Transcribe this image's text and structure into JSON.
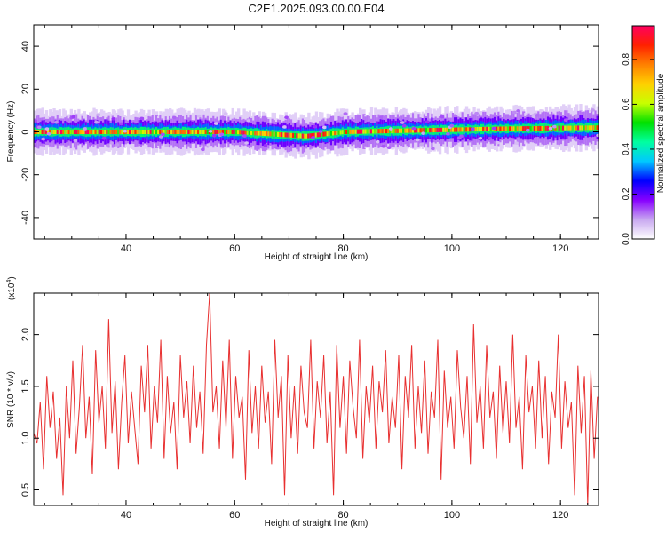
{
  "title": "C2E1.2025.093.00.00.E04",
  "chart_data": [
    {
      "type": "heatmap",
      "xlabel": "Height of straight line (km)",
      "ylabel": "Frequency (Hz)",
      "xlim": [
        23,
        127
      ],
      "ylim": [
        -50,
        50
      ],
      "x_ticks": [
        40,
        60,
        80,
        100,
        120
      ],
      "y_ticks": [
        -40,
        -20,
        0,
        20,
        40
      ],
      "y_tick_labels": [
        "-40",
        "-20",
        "0",
        "20",
        "40"
      ],
      "band": {
        "center_x": [
          23,
          40,
          60,
          73,
          80,
          100,
          110,
          127
        ],
        "center_y": [
          0,
          0,
          0,
          -2,
          0,
          1,
          1.5,
          2
        ],
        "half_width_hz": 3.5
      },
      "colorbar": {
        "label": "Normalized spectral amplitude",
        "range": [
          0,
          0.95
        ],
        "ticks": [
          0.0,
          0.2,
          0.4,
          0.6,
          0.8
        ],
        "tick_labels": [
          "0.0",
          "0.2",
          "0.4",
          "0.6",
          "0.8"
        ],
        "colormap": [
          "#ffffff",
          "#c8a8f0",
          "#8800ff",
          "#0000ff",
          "#00c8ff",
          "#00ffa0",
          "#00e000",
          "#c8ff00",
          "#ffd000",
          "#ff8000",
          "#ff2000",
          "#ff0060"
        ]
      },
      "grid": false
    },
    {
      "type": "line",
      "xlabel": "Height of straight line (km)",
      "ylabel": "SNR (10 * v/v)",
      "scale_label": "(x10",
      "scale_exponent": "4",
      "scale_close": ")",
      "xlim": [
        23,
        127
      ],
      "ylim": [
        0.35,
        2.4
      ],
      "x_ticks": [
        40,
        60,
        80,
        100,
        120
      ],
      "y_ticks": [
        0.5,
        1.0,
        1.5,
        2.0
      ],
      "y_tick_labels": [
        "0.5",
        "1.0",
        "1.5",
        "2.0"
      ],
      "series": [
        {
          "color": "#e83030",
          "x": [
            23.0,
            23.6,
            24.2,
            24.8,
            25.4,
            26.0,
            26.6,
            27.2,
            27.8,
            28.4,
            29.0,
            29.6,
            30.2,
            30.8,
            31.4,
            32.0,
            32.6,
            33.2,
            33.8,
            34.4,
            35.0,
            35.6,
            36.2,
            36.8,
            37.4,
            38.0,
            38.6,
            39.2,
            39.8,
            40.4,
            41.0,
            41.6,
            42.2,
            42.8,
            43.4,
            44.0,
            44.6,
            45.2,
            45.8,
            46.4,
            47.0,
            47.6,
            48.2,
            48.8,
            49.4,
            50.0,
            50.6,
            51.2,
            51.8,
            52.4,
            53.0,
            53.6,
            54.2,
            54.8,
            55.4,
            56.0,
            56.6,
            57.2,
            57.8,
            58.4,
            59.0,
            59.6,
            60.2,
            60.8,
            61.4,
            62.0,
            62.6,
            63.2,
            63.8,
            64.4,
            65.0,
            65.6,
            66.2,
            66.8,
            67.4,
            68.0,
            68.6,
            69.2,
            69.8,
            70.4,
            71.0,
            71.6,
            72.2,
            72.8,
            73.4,
            74.0,
            74.6,
            75.2,
            75.8,
            76.4,
            77.0,
            77.6,
            78.2,
            78.8,
            79.4,
            80.0,
            80.6,
            81.2,
            81.8,
            82.4,
            83.0,
            83.6,
            84.2,
            84.8,
            85.4,
            86.0,
            86.6,
            87.2,
            87.8,
            88.4,
            89.0,
            89.6,
            90.2,
            90.8,
            91.4,
            92.0,
            92.6,
            93.2,
            93.8,
            94.4,
            95.0,
            95.6,
            96.2,
            96.8,
            97.4,
            98.0,
            98.6,
            99.2,
            99.8,
            100.4,
            101.0,
            101.6,
            102.2,
            102.8,
            103.4,
            104.0,
            104.6,
            105.2,
            105.8,
            106.4,
            107.0,
            107.6,
            108.2,
            108.8,
            109.4,
            110.0,
            110.6,
            111.2,
            111.8,
            112.4,
            113.0,
            113.6,
            114.2,
            114.8,
            115.4,
            116.0,
            116.6,
            117.2,
            117.8,
            118.4,
            119.0,
            119.6,
            120.2,
            120.8,
            121.4,
            122.0,
            122.6,
            123.2,
            123.8,
            124.4,
            125.0,
            125.6,
            126.2,
            126.8
          ],
          "values": [
            1.05,
            0.95,
            1.35,
            0.7,
            1.6,
            1.1,
            1.45,
            0.8,
            1.2,
            0.45,
            1.5,
            1.0,
            1.75,
            0.85,
            1.3,
            1.9,
            1.0,
            1.4,
            0.65,
            1.85,
            1.15,
            1.5,
            0.9,
            2.15,
            1.05,
            1.55,
            0.7,
            1.35,
            1.8,
            0.95,
            1.45,
            1.1,
            0.75,
            1.7,
            1.25,
            1.9,
            0.9,
            1.5,
            1.15,
            1.95,
            0.8,
            1.6,
            1.05,
            1.35,
            0.7,
            1.8,
            1.2,
            1.55,
            0.95,
            1.7,
            1.1,
            1.45,
            0.85,
            1.9,
            2.4,
            1.25,
            1.5,
            0.9,
            1.75,
            1.1,
            1.95,
            0.8,
            1.6,
            1.2,
            1.4,
            0.6,
            1.85,
            1.05,
            1.5,
            0.9,
            1.7,
            1.15,
            1.45,
            0.75,
            1.95,
            1.2,
            1.6,
            0.45,
            1.8,
            1.0,
            1.5,
            0.85,
            1.7,
            1.25,
            1.1,
            1.95,
            0.9,
            1.55,
            1.2,
            1.8,
            0.95,
            1.45,
            0.45,
            1.9,
            1.1,
            1.6,
            0.85,
            1.75,
            1.3,
            1.0,
            1.95,
            0.8,
            1.5,
            1.15,
            1.7,
            0.9,
            1.55,
            1.25,
            1.85,
            0.95,
            1.4,
            1.1,
            1.8,
            0.7,
            1.6,
            1.2,
            1.9,
            0.9,
            1.5,
            1.05,
            1.75,
            0.85,
            1.45,
            1.2,
            1.95,
            0.6,
            1.65,
            1.1,
            1.4,
            0.9,
            1.85,
            1.3,
            1.0,
            1.6,
            0.75,
            2.1,
            1.15,
            1.5,
            0.9,
            1.9,
            1.2,
            1.45,
            0.8,
            1.7,
            1.05,
            1.55,
            0.95,
            2.0,
            1.1,
            1.4,
            0.7,
            1.8,
            1.25,
            1.5,
            0.9,
            1.75,
            1.0,
            1.6,
            0.75,
            1.45,
            1.2,
            2.0,
            0.9,
            1.55,
            1.1,
            1.35,
            0.45,
            1.7,
            1.05,
            1.6,
            0.35,
            1.65,
            0.8,
            1.4
          ]
        }
      ],
      "grid": false
    }
  ]
}
